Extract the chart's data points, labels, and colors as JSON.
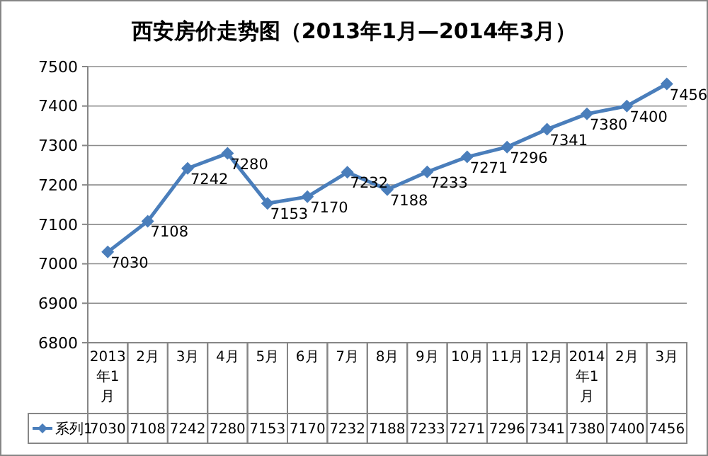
{
  "chart_data": {
    "type": "line",
    "title": "西安房价走势图（2013年1月—2014年3月）",
    "categories": [
      "2013年1月",
      "2月",
      "3月",
      "4月",
      "5月",
      "6月",
      "7月",
      "8月",
      "9月",
      "10月",
      "11月",
      "12月",
      "2014年1月",
      "2月",
      "3月"
    ],
    "series": [
      {
        "name": "系列1",
        "color": "#4a7ebb",
        "values": [
          7030,
          7108,
          7242,
          7280,
          7153,
          7170,
          7232,
          7188,
          7233,
          7271,
          7296,
          7341,
          7380,
          7400,
          7456
        ],
        "value_labels": [
          "7030",
          "7108",
          "7242",
          "7280",
          "7153",
          "7170",
          "7232",
          "7188",
          "7233",
          "7271",
          "7296",
          "7341",
          "7380",
          "7400",
          "7456"
        ]
      }
    ],
    "ylim": [
      6800,
      7500
    ],
    "yticks": [
      6800,
      6900,
      7000,
      7100,
      7200,
      7300,
      7400,
      7500
    ],
    "grid": "y",
    "marker": "diamond",
    "line_style": "solid",
    "legend": "bottom",
    "data_labels": true
  }
}
